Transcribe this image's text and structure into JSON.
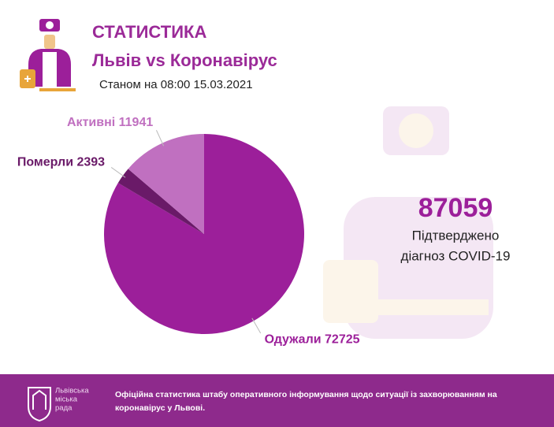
{
  "header": {
    "title": "СТАТИСТИКА",
    "subtitle": "Львів vs Коронавірус",
    "date": "Станом на 08:00 15.03.2021"
  },
  "chart_data": {
    "type": "pie",
    "categories": [
      "Одужали",
      "Померли",
      "Активні"
    ],
    "values": [
      72725,
      2393,
      11941
    ],
    "colors": [
      "#9c1f9a",
      "#6a1a68",
      "#c070c0"
    ]
  },
  "total": {
    "value": 87059,
    "lines": [
      "Підтверджено",
      "діагноз COVID-19"
    ]
  },
  "footer": {
    "logo_lines": [
      "Львівська",
      "міська",
      "рада"
    ],
    "text_lines": [
      "Офіційна статистика штабу оперативного інформування щодо ситуації із захворюванням на",
      "коронавірус у Львові."
    ]
  }
}
